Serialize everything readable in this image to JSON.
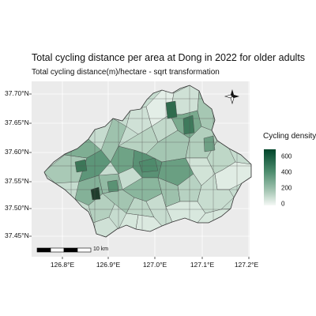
{
  "map": {
    "title": "Total cycling distance per area at Dong in 2022 for older adults",
    "subtitle": "Total cycling distance(m)/hectare - sqrt transformation",
    "y_ticks": [
      "37.70°N",
      "37.65°N",
      "37.60°N",
      "37.55°N",
      "37.50°N",
      "37.45°N"
    ],
    "x_ticks": [
      "126.8°E",
      "126.9°E",
      "127.0°E",
      "127.1°E",
      "127.2°E"
    ],
    "legend": {
      "title": "Cycling density",
      "ticks": [
        "600",
        "400",
        "200",
        "0"
      ],
      "colors": [
        "#00452a",
        "#f5f9f6"
      ]
    },
    "scale_bar": {
      "label": "10 km"
    },
    "north_arrow": {
      "icon": "north-arrow-icon"
    }
  }
}
